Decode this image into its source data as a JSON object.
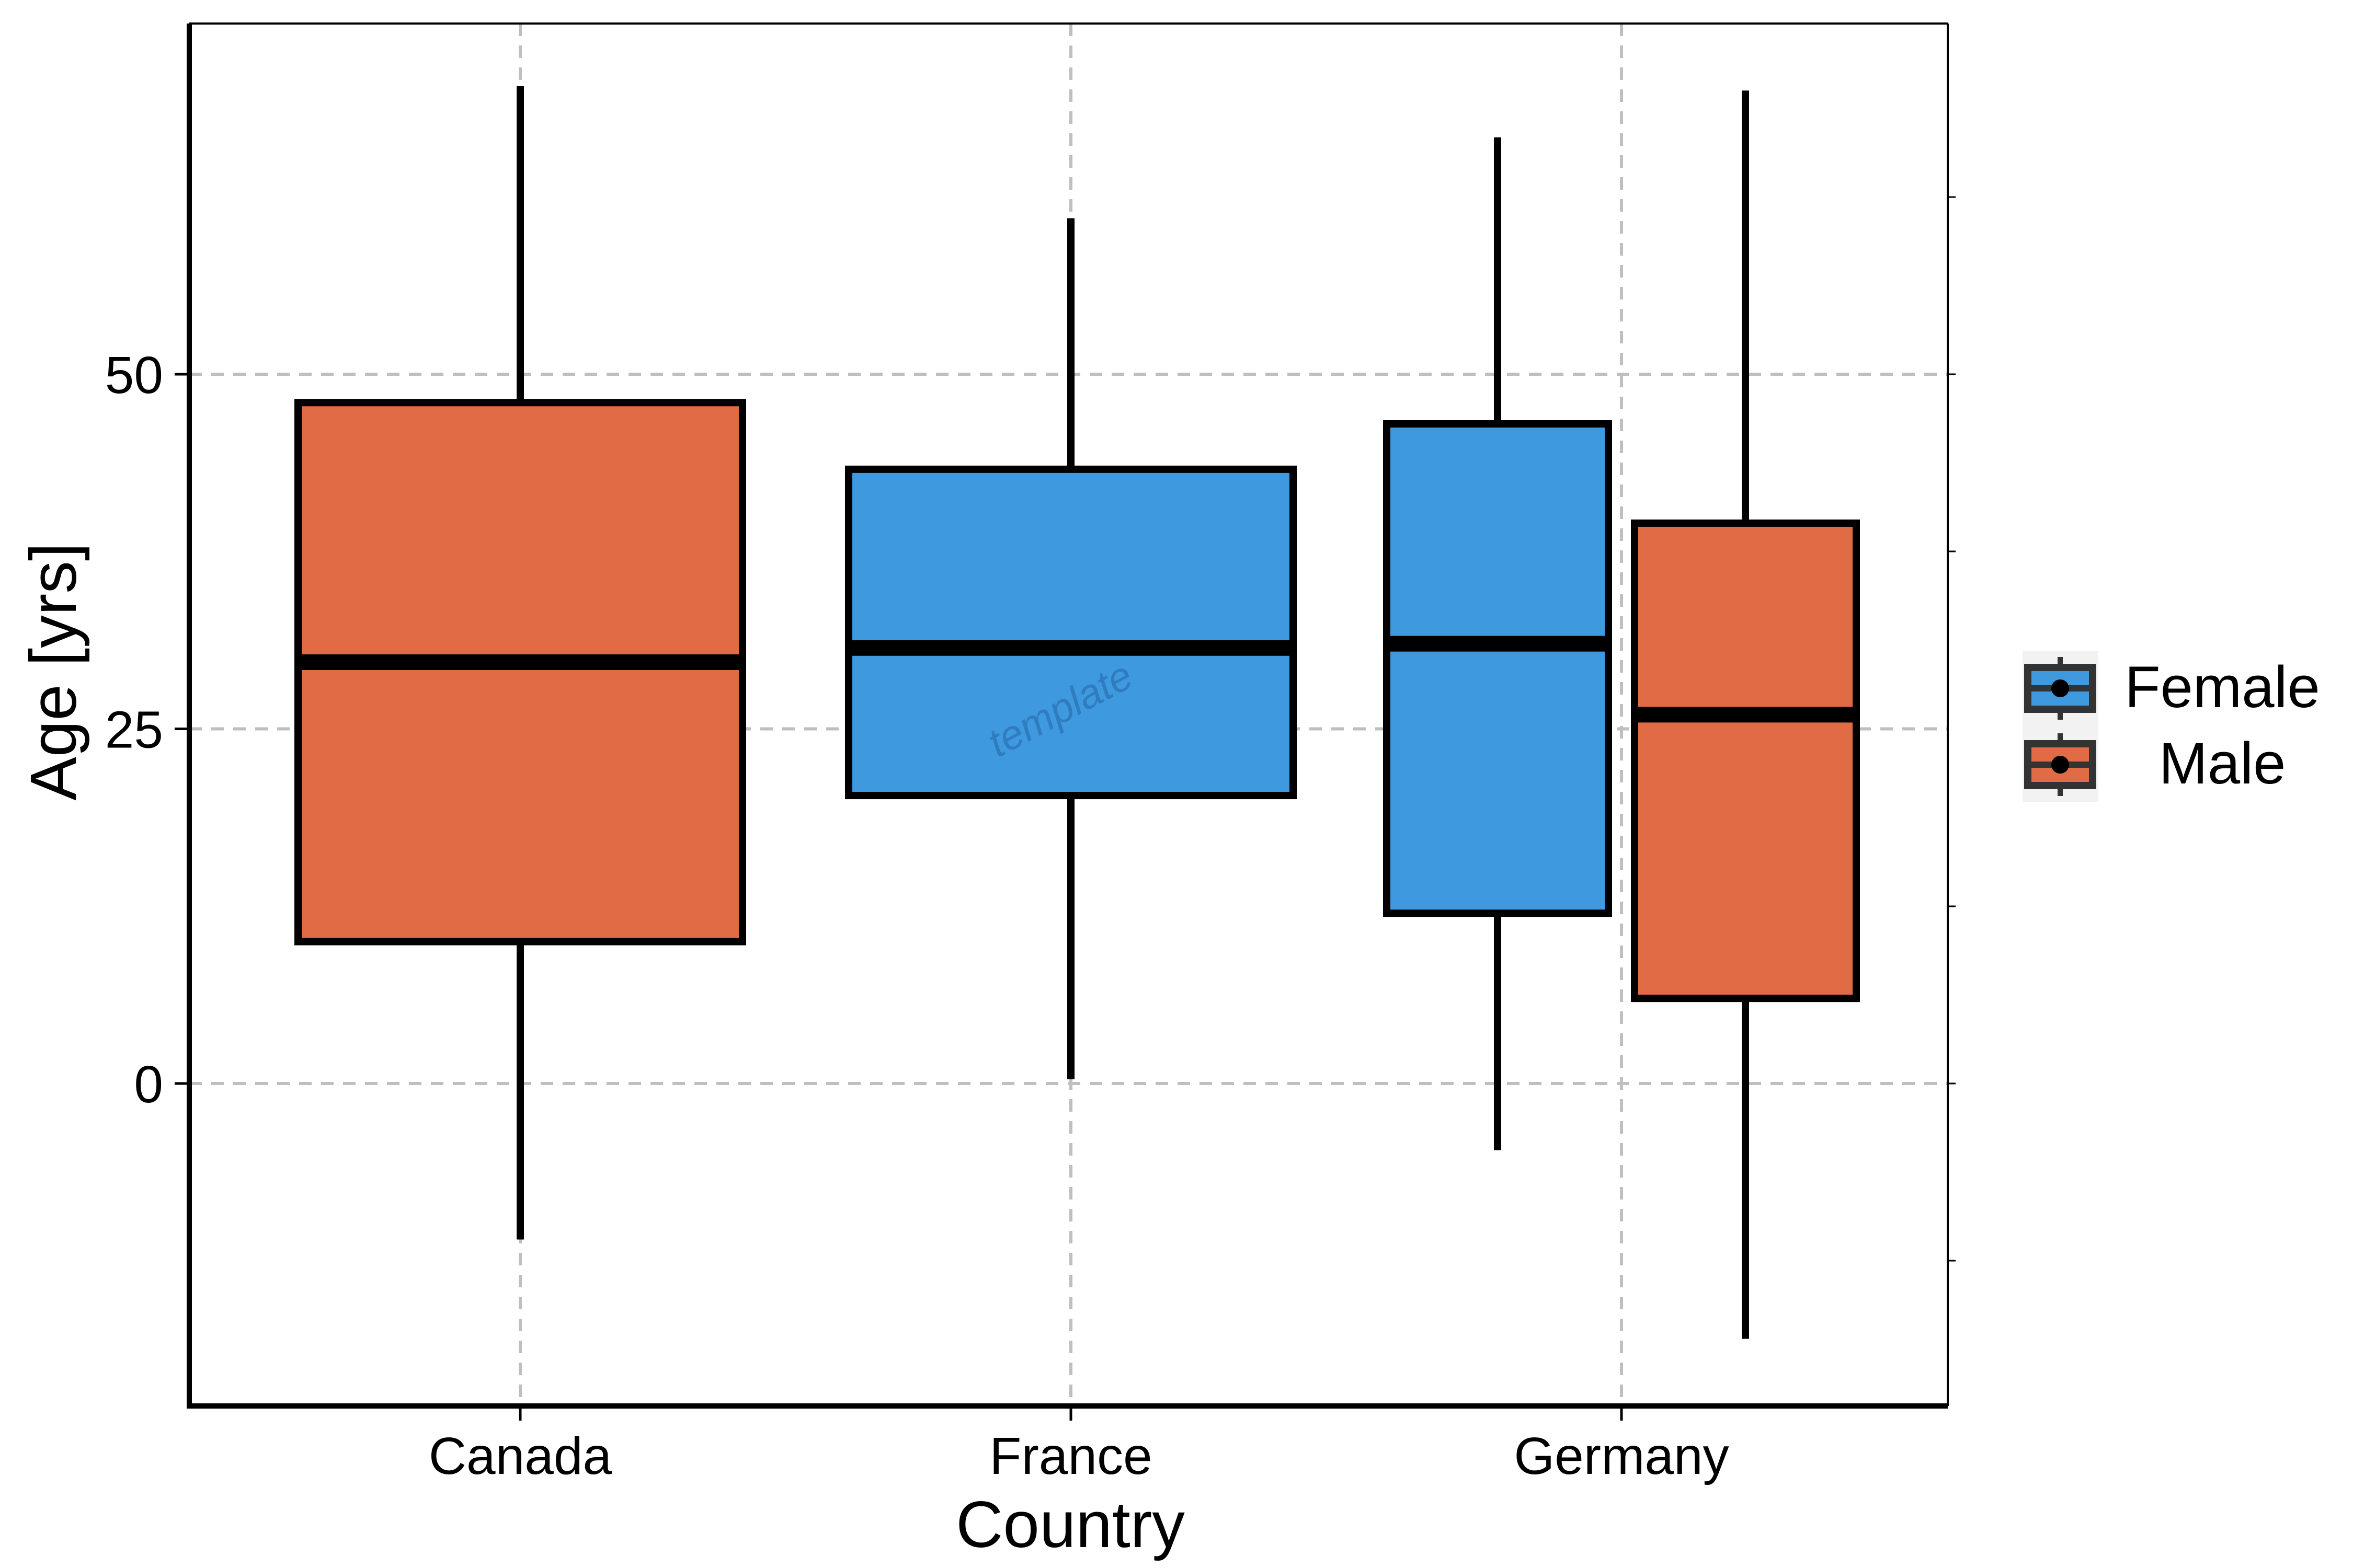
{
  "chart_data": {
    "type": "boxplot",
    "xlabel": "Country",
    "ylabel": "Age [yrs]",
    "categories": [
      "Canada",
      "France",
      "Germany"
    ],
    "yticks": [
      0,
      25,
      50
    ],
    "ylim": [
      -22.5,
      75
    ],
    "grid": true,
    "legend_position": "right",
    "legend": [
      {
        "label": "Female",
        "color": "#3F99DF"
      },
      {
        "label": "Male",
        "color": "#E16B44"
      }
    ],
    "series": [
      {
        "name": "Female",
        "color": "#3F99DF",
        "boxes": [
          {
            "category": "France",
            "min": 0.3,
            "q1": 20.3,
            "median": 30.7,
            "q3": 43.3,
            "max": 61.0
          },
          {
            "category": "Germany",
            "min": -4.7,
            "q1": 12.0,
            "median": 31.0,
            "q3": 46.5,
            "max": 66.7
          }
        ]
      },
      {
        "name": "Male",
        "color": "#E16B44",
        "boxes": [
          {
            "category": "Canada",
            "min": -11.0,
            "q1": 10.0,
            "median": 29.7,
            "q3": 48.0,
            "max": 70.3
          },
          {
            "category": "Germany",
            "min": -18.0,
            "q1": 6.0,
            "median": 26.0,
            "q3": 39.5,
            "max": 70.0
          }
        ]
      }
    ],
    "watermark": "template"
  }
}
